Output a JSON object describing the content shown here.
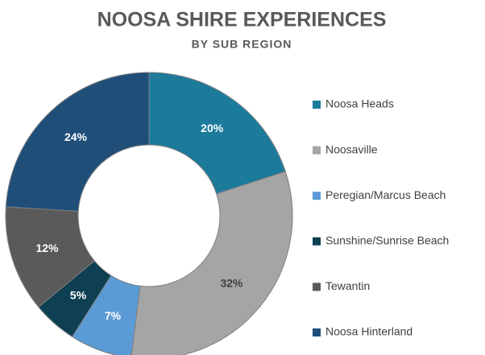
{
  "chart_data": {
    "type": "donut",
    "title": "NOOSA SHIRE EXPERIENCES",
    "subtitle": "BY SUB REGION",
    "categories": [
      "Noosa Heads",
      "Noosaville",
      "Peregian/Marcus Beach",
      "Sunshine/Sunrise Beach",
      "Tewantin",
      "Noosa Hinterland"
    ],
    "values": [
      20,
      32,
      7,
      5,
      12,
      24
    ],
    "value_labels": [
      "20%",
      "32%",
      "7%",
      "5%",
      "12%",
      "24%"
    ],
    "colors": [
      "#1c7b9b",
      "#a5a5a5",
      "#5b9bd5",
      "#0e3f52",
      "#5a5a5a",
      "#1f4e79"
    ],
    "legend": "right"
  }
}
